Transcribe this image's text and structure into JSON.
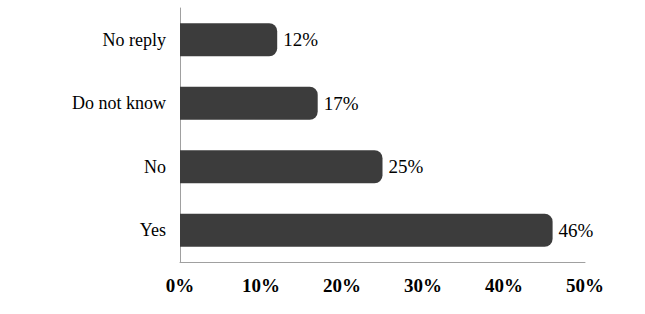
{
  "chart_data": {
    "type": "bar",
    "orientation": "horizontal",
    "categories": [
      "Yes",
      "No",
      "Do not know",
      "No reply"
    ],
    "values": [
      46,
      25,
      17,
      12
    ],
    "value_labels": [
      "46%",
      "25%",
      "17%",
      "12%"
    ],
    "data_labels": true,
    "color": "#3c3c3c",
    "xlim": [
      0,
      50
    ],
    "xticks": [
      {
        "value": 0,
        "label": "0%"
      },
      {
        "value": 10,
        "label": "10%"
      },
      {
        "value": 20,
        "label": "20%"
      },
      {
        "value": 30,
        "label": "30%"
      },
      {
        "value": 40,
        "label": "40%"
      },
      {
        "value": 50,
        "label": "50%"
      }
    ],
    "grid": false
  }
}
